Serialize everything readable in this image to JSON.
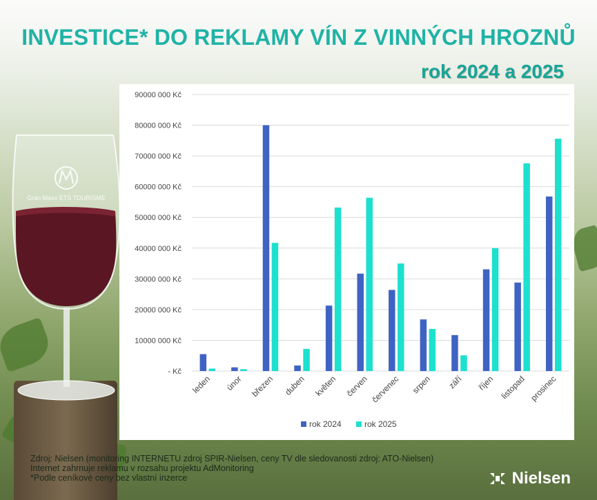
{
  "title": "INVESTICE* DO REKLAMY VÍN Z VINNÝCH HROZNŮ",
  "subtitle": "rok 2024 a 2025",
  "chart_data": {
    "type": "bar",
    "categories": [
      "leden",
      "únor",
      "březen",
      "duben",
      "květen",
      "červen",
      "červenec",
      "srpen",
      "září",
      "říjen",
      "listopad",
      "prosinec"
    ],
    "series": [
      {
        "name": "rok 2024",
        "color": "#3f63c3",
        "values": [
          5500000,
          1200000,
          80000000,
          1800000,
          21300000,
          31700000,
          26400000,
          16800000,
          11700000,
          33100000,
          28800000,
          56800000
        ]
      },
      {
        "name": "rok 2025",
        "color": "#1de0cf",
        "values": [
          800000,
          600000,
          41700000,
          7200000,
          53200000,
          56400000,
          35000000,
          13700000,
          5100000,
          40000000,
          67600000,
          75600000
        ]
      }
    ],
    "ylim": [
      0,
      90000000
    ],
    "yticks": [
      0,
      10000000,
      20000000,
      30000000,
      40000000,
      50000000,
      60000000,
      70000000,
      80000000,
      90000000
    ],
    "ytick_labels": [
      "-  Kč",
      "10000 000 Kč",
      "20000 000 Kč",
      "30000 000 Kč",
      "40000 000 Kč",
      "50000 000 Kč",
      "60000 000 Kč",
      "70000 000 Kč",
      "80000 000 Kč",
      "90000 000 Kč"
    ],
    "grid": true,
    "legend_position": "bottom",
    "xlabel": "",
    "ylabel": ""
  },
  "footer": {
    "line1": "Zdroj: Nielsen (monitoring INTERNETU zdroj SPIR-Nielsen, ceny TV dle sledovanosti zdroj: ATO-Nielsen)",
    "line2": "Internet zahrnuje reklamu v rozsahu projektu AdMonitoring",
    "line3": "*Podle ceníkové ceny bez vlastní inzerce"
  },
  "brand": {
    "name": "Nielsen",
    "icon": "nielsen-logo-icon"
  },
  "glass": {
    "icon": "wine-glass-icon",
    "engraving": "Gran Maxx ETS TOURISME"
  }
}
